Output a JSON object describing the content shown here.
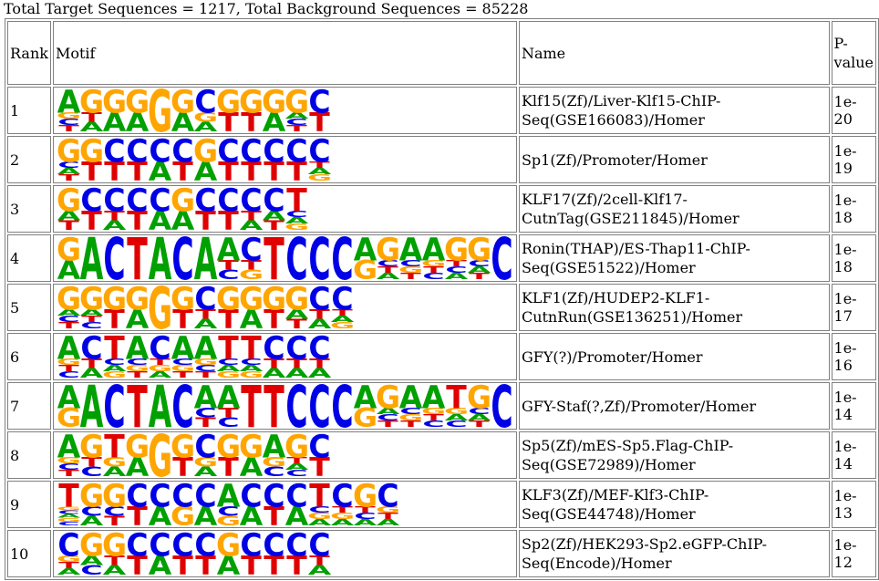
{
  "summary": "Total Target Sequences = 1217, Total Background Sequences = 85228",
  "headers": {
    "rank": "Rank",
    "motif": "Motif",
    "name": "Name",
    "pvalue": "P-value"
  },
  "colors": {
    "A": "#00a000",
    "C": "#0000e6",
    "G": "#ffa500",
    "T": "#e00000"
  },
  "rows": [
    {
      "rank": "1",
      "name": "Klf15(Zf)/Liver-Klf15-ChIP-Seq(GSE166083)/Homer",
      "pvalue": "1e-20",
      "motif": [
        [
          "A",
          "G",
          "C",
          "T"
        ],
        [
          "G",
          "T",
          "A"
        ],
        [
          "G",
          "A"
        ],
        [
          "G",
          "A"
        ],
        [
          "G"
        ],
        [
          "G",
          "A"
        ],
        [
          "C",
          "G",
          "A"
        ],
        [
          "G",
          "T"
        ],
        [
          "G",
          "T"
        ],
        [
          "G",
          "A"
        ],
        [
          "G",
          "A",
          "C",
          "T"
        ],
        [
          "C",
          "T"
        ]
      ]
    },
    {
      "rank": "2",
      "name": "Sp1(Zf)/Promoter/Homer",
      "pvalue": "1e-19",
      "motif": [
        [
          "G",
          "C",
          "A",
          "T"
        ],
        [
          "G",
          "T"
        ],
        [
          "C",
          "T"
        ],
        [
          "C",
          "T"
        ],
        [
          "C",
          "A"
        ],
        [
          "C",
          "T"
        ],
        [
          "G",
          "A"
        ],
        [
          "C",
          "T"
        ],
        [
          "C",
          "T"
        ],
        [
          "C",
          "T"
        ],
        [
          "C",
          "T"
        ],
        [
          "C",
          "T",
          "A",
          "G"
        ]
      ]
    },
    {
      "rank": "3",
      "name": "KLF17(Zf)/2cell-Klf17-CutnTag(GSE211845)/Homer",
      "pvalue": "1e-18",
      "motif": [
        [
          "G",
          "A",
          "T"
        ],
        [
          "C",
          "T"
        ],
        [
          "C",
          "T",
          "A"
        ],
        [
          "C",
          "T"
        ],
        [
          "C",
          "A"
        ],
        [
          "G",
          "A"
        ],
        [
          "C",
          "T"
        ],
        [
          "C",
          "T"
        ],
        [
          "C",
          "T",
          "A"
        ],
        [
          "C",
          "A",
          "T"
        ],
        [
          "T",
          "C",
          "A",
          "G"
        ]
      ]
    },
    {
      "rank": "4",
      "name": "Ronin(THAP)/ES-Thap11-ChIP-Seq(GSE51522)/Homer",
      "pvalue": "1e-18",
      "motif": [
        [
          "G",
          "A"
        ],
        [
          "A"
        ],
        [
          "C"
        ],
        [
          "T"
        ],
        [
          "A"
        ],
        [
          "C"
        ],
        [
          "A"
        ],
        [
          "A",
          "T",
          "C"
        ],
        [
          "C",
          "T",
          "G"
        ],
        [
          "T"
        ],
        [
          "C"
        ],
        [
          "C"
        ],
        [
          "C"
        ],
        [
          "A",
          "G"
        ],
        [
          "G",
          "C",
          "T",
          "A"
        ],
        [
          "A",
          "C",
          "G",
          "T"
        ],
        [
          "A",
          "G",
          "T",
          "C"
        ],
        [
          "G",
          "T",
          "C",
          "A"
        ],
        [
          "G",
          "C",
          "A",
          "T"
        ],
        [
          "C"
        ]
      ]
    },
    {
      "rank": "5",
      "name": "KLF1(Zf)/HUDEP2-KLF1-CutnRun(GSE136251)/Homer",
      "pvalue": "1e-17",
      "motif": [
        [
          "G",
          "A",
          "C",
          "T"
        ],
        [
          "G",
          "A",
          "T",
          "C"
        ],
        [
          "G",
          "T"
        ],
        [
          "G",
          "A"
        ],
        [
          "G"
        ],
        [
          "G",
          "T"
        ],
        [
          "C",
          "T",
          "A"
        ],
        [
          "G",
          "T"
        ],
        [
          "G",
          "A"
        ],
        [
          "G",
          "T"
        ],
        [
          "G",
          "A",
          "T"
        ],
        [
          "C",
          "T",
          "A"
        ],
        [
          "C",
          "T",
          "A",
          "G"
        ]
      ]
    },
    {
      "rank": "6",
      "name": "GFY(?)/Promoter/Homer",
      "pvalue": "1e-16",
      "motif": [
        [
          "A",
          "G",
          "T",
          "C"
        ],
        [
          "C",
          "T",
          "A"
        ],
        [
          "T",
          "C",
          "A",
          "G"
        ],
        [
          "A",
          "C",
          "G",
          "T"
        ],
        [
          "C",
          "T",
          "G",
          "A"
        ],
        [
          "A",
          "C",
          "G",
          "T"
        ],
        [
          "A",
          "G",
          "C",
          "T"
        ],
        [
          "T",
          "C",
          "A",
          "G"
        ],
        [
          "T",
          "C",
          "A",
          "G"
        ],
        [
          "C",
          "T",
          "A"
        ],
        [
          "C",
          "T",
          "A"
        ],
        [
          "C",
          "T",
          "A"
        ]
      ]
    },
    {
      "rank": "7",
      "name": "GFY-Staf(?,Zf)/Promoter/Homer",
      "pvalue": "1e-14",
      "motif": [
        [
          "A",
          "G"
        ],
        [
          "A"
        ],
        [
          "C"
        ],
        [
          "T"
        ],
        [
          "A"
        ],
        [
          "C"
        ],
        [
          "A",
          "C",
          "T"
        ],
        [
          "A",
          "T",
          "C"
        ],
        [
          "T"
        ],
        [
          "T"
        ],
        [
          "C"
        ],
        [
          "C"
        ],
        [
          "C"
        ],
        [
          "A",
          "G"
        ],
        [
          "G",
          "A",
          "C",
          "T"
        ],
        [
          "A",
          "C",
          "G",
          "T"
        ],
        [
          "A",
          "G",
          "T",
          "C"
        ],
        [
          "T",
          "G",
          "A",
          "C"
        ],
        [
          "G",
          "C",
          "A",
          "T"
        ],
        [
          "C"
        ]
      ]
    },
    {
      "rank": "8",
      "name": "Sp5(Zf)/mES-Sp5.Flag-ChIP-Seq(GSE72989)/Homer",
      "pvalue": "1e-14",
      "motif": [
        [
          "A",
          "G",
          "C",
          "T"
        ],
        [
          "G",
          "T",
          "C"
        ],
        [
          "T",
          "G",
          "A"
        ],
        [
          "G",
          "A"
        ],
        [
          "G"
        ],
        [
          "G",
          "T"
        ],
        [
          "C",
          "G",
          "A"
        ],
        [
          "G",
          "T"
        ],
        [
          "G",
          "A"
        ],
        [
          "A",
          "G",
          "C"
        ],
        [
          "G",
          "T",
          "A",
          "C"
        ],
        [
          "C",
          "T"
        ]
      ]
    },
    {
      "rank": "9",
      "name": "KLF3(Zf)/MEF-Klf3-ChIP-Seq(GSE44748)/Homer",
      "pvalue": "1e-13",
      "motif": [
        [
          "T",
          "G",
          "C",
          "A",
          "G",
          "C"
        ],
        [
          "G",
          "C",
          "A"
        ],
        [
          "G",
          "C",
          "T"
        ],
        [
          "C",
          "T"
        ],
        [
          "C",
          "A"
        ],
        [
          "C",
          "G"
        ],
        [
          "C",
          "A"
        ],
        [
          "A",
          "C",
          "G"
        ],
        [
          "C",
          "A"
        ],
        [
          "C",
          "T"
        ],
        [
          "C",
          "A"
        ],
        [
          "T",
          "C",
          "G",
          "A"
        ],
        [
          "C",
          "T",
          "G",
          "A"
        ],
        [
          "G",
          "T",
          "C",
          "A"
        ],
        [
          "C",
          "G",
          "T",
          "A"
        ]
      ]
    },
    {
      "rank": "10",
      "name": "Sp2(Zf)/HEK293-Sp2.eGFP-ChIP-Seq(Encode)/Homer",
      "pvalue": "1e-12",
      "motif": [
        [
          "C",
          "G",
          "T",
          "A"
        ],
        [
          "G",
          "A",
          "C"
        ],
        [
          "G",
          "T",
          "A"
        ],
        [
          "C",
          "T"
        ],
        [
          "C",
          "A"
        ],
        [
          "C",
          "T"
        ],
        [
          "C",
          "T"
        ],
        [
          "G",
          "A"
        ],
        [
          "C",
          "T"
        ],
        [
          "C",
          "T"
        ],
        [
          "C",
          "T"
        ],
        [
          "C",
          "T",
          "A"
        ]
      ]
    }
  ]
}
